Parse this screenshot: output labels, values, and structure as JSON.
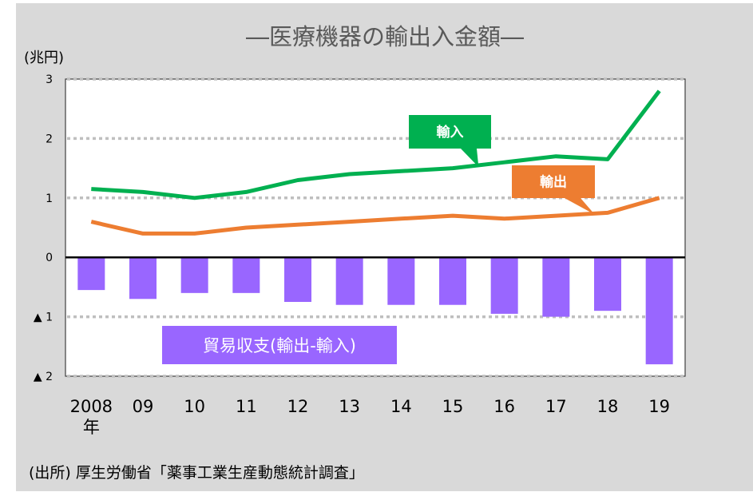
{
  "title": "―医療機器の輸出入金額―",
  "unit_label": "(兆円)",
  "source": "(出所) 厚生労働省「薬事工業生産動態統計調査」",
  "x_suffix": "年",
  "colors": {
    "import": "#00b050",
    "export": "#ed7d31",
    "balance": "#9966ff",
    "background": "#d9d9d9",
    "plot": "#ffffff"
  },
  "chart_data": {
    "type": "line",
    "title": "―医療機器の輸出入金額―",
    "ylabel": "(兆円)",
    "ylim": [
      -2,
      3
    ],
    "yticks": [
      {
        "value": 3,
        "label": "3"
      },
      {
        "value": 2,
        "label": "2"
      },
      {
        "value": 1,
        "label": "1"
      },
      {
        "value": 0,
        "label": "0"
      },
      {
        "value": -1,
        "label": "▲ 1"
      },
      {
        "value": -2,
        "label": "▲ 2"
      }
    ],
    "grid": "horizontal dotted",
    "categories": [
      "2008",
      "09",
      "10",
      "11",
      "12",
      "13",
      "14",
      "15",
      "16",
      "17",
      "18",
      "19"
    ],
    "series": [
      {
        "name": "輸入",
        "kind": "line",
        "color": "#00b050",
        "values": [
          1.15,
          1.1,
          1.0,
          1.1,
          1.3,
          1.4,
          1.45,
          1.5,
          1.6,
          1.7,
          1.65,
          2.8
        ]
      },
      {
        "name": "輸出",
        "kind": "line",
        "color": "#ed7d31",
        "values": [
          0.6,
          0.4,
          0.4,
          0.5,
          0.55,
          0.6,
          0.65,
          0.7,
          0.65,
          0.7,
          0.75,
          1.0
        ]
      },
      {
        "name": "貿易収支(輸出-輸入)",
        "kind": "bar",
        "color": "#9966ff",
        "values": [
          -0.55,
          -0.7,
          -0.6,
          -0.6,
          -0.75,
          -0.8,
          -0.8,
          -0.8,
          -0.95,
          -1.0,
          -0.9,
          -1.8
        ]
      }
    ]
  }
}
